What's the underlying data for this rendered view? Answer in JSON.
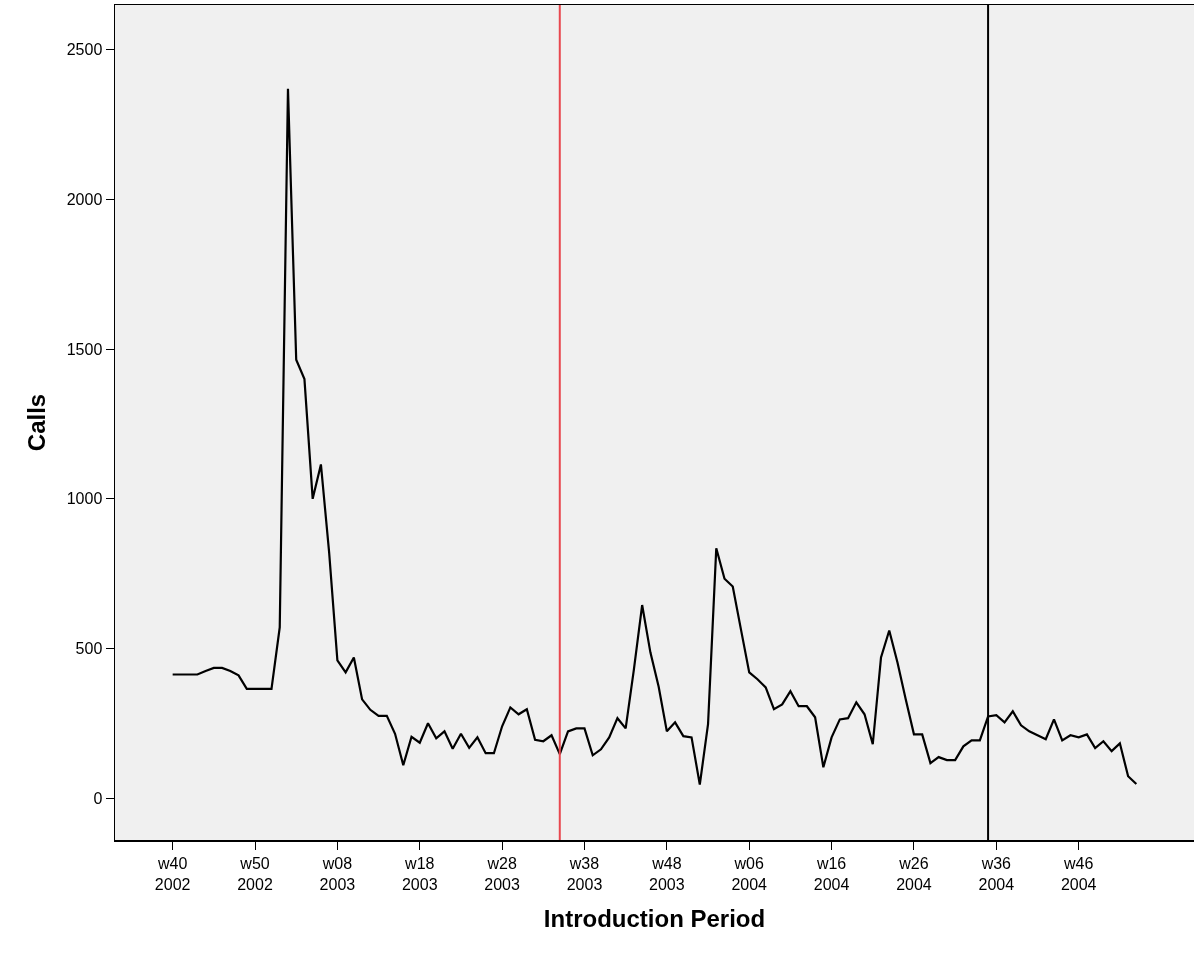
{
  "chart_data": {
    "type": "line",
    "xlabel": "Introduction Period",
    "ylabel": "Calls",
    "categories": [
      "w40\n2002",
      null,
      null,
      null,
      null,
      null,
      null,
      null,
      null,
      null,
      "w50\n2002",
      null,
      null,
      null,
      null,
      null,
      null,
      null,
      null,
      null,
      "w08\n2003",
      null,
      null,
      null,
      null,
      null,
      null,
      null,
      null,
      null,
      "w18\n2003",
      null,
      null,
      null,
      null,
      null,
      null,
      null,
      null,
      null,
      "w28\n2003",
      null,
      null,
      null,
      null,
      null,
      null,
      null,
      null,
      null,
      "w38\n2003",
      null,
      null,
      null,
      null,
      null,
      null,
      null,
      null,
      null,
      "w48\n2003",
      null,
      null,
      null,
      null,
      null,
      null,
      null,
      null,
      null,
      "w06\n2004",
      null,
      null,
      null,
      null,
      null,
      null,
      null,
      null,
      null,
      "w16\n2004",
      null,
      null,
      null,
      null,
      null,
      null,
      null,
      null,
      null,
      "w26\n2004",
      null,
      null,
      null,
      null,
      null,
      null,
      null,
      null,
      null,
      "w36\n2004",
      null,
      null,
      null,
      null,
      null,
      null,
      null,
      null,
      null,
      "w46\n2004",
      null,
      null,
      null,
      null,
      null,
      null,
      null
    ],
    "series": [
      {
        "color": "#000000",
        "values": [
          413,
          413,
          413,
          413,
          425,
          435,
          435,
          425,
          410,
          365,
          365,
          365,
          365,
          570,
          2370,
          1465,
          1400,
          1000,
          1115,
          820,
          460,
          420,
          470,
          330,
          295,
          275,
          275,
          215,
          110,
          205,
          185,
          250,
          200,
          223,
          165,
          215,
          168,
          203,
          150,
          150,
          240,
          303,
          280,
          297,
          195,
          190,
          210,
          147,
          223,
          233,
          233,
          143,
          163,
          203,
          267,
          233,
          430,
          645,
          487,
          373,
          223,
          253,
          207,
          203,
          45,
          247,
          835,
          733,
          707,
          563,
          420,
          397,
          370,
          297,
          313,
          357,
          307,
          307,
          270,
          103,
          203,
          263,
          267,
          320,
          280,
          180,
          470,
          560,
          453,
          330,
          213,
          213,
          117,
          137,
          127,
          127,
          173,
          193,
          193,
          273,
          277,
          253,
          290,
          243,
          223,
          210,
          197,
          263,
          193,
          210,
          203,
          213,
          167,
          190,
          157,
          183,
          73,
          47
        ]
      }
    ],
    "ylim": [
      -140,
      2650
    ],
    "yticks": [
      0,
      500,
      1000,
      1500,
      2000,
      2500
    ],
    "grid": false,
    "marker": "none",
    "line_style": "solid"
  }
}
